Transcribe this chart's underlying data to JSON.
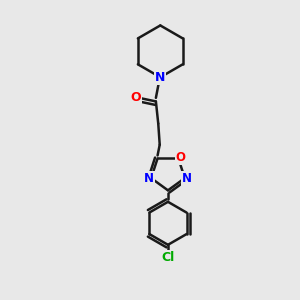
{
  "bg_color": "#e8e8e8",
  "bond_color": "#1a1a1a",
  "N_color": "#0000ff",
  "O_color": "#ff0000",
  "Cl_color": "#00aa00",
  "line_width": 1.8,
  "figsize": [
    3.0,
    3.0
  ],
  "dpi": 100,
  "xlim": [
    0,
    10
  ],
  "ylim": [
    0,
    10
  ]
}
